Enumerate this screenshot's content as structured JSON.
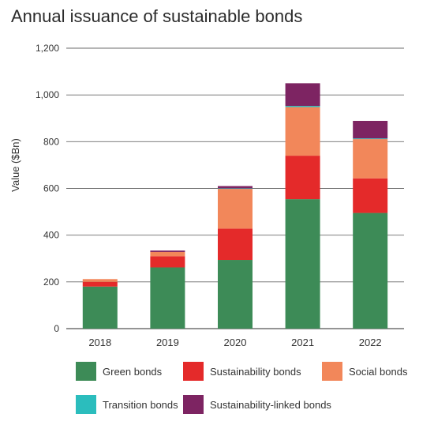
{
  "chart_data": {
    "type": "bar",
    "stacked": true,
    "title": "Annual issuance of sustainable bonds",
    "ylabel": "Value ($Bn)",
    "xlabel": "",
    "ylim": [
      0,
      1200
    ],
    "yticks": [
      0,
      200,
      400,
      600,
      800,
      1000,
      1200
    ],
    "ytick_labels": [
      "0",
      "200",
      "400",
      "600",
      "800",
      "1,000",
      "1,200"
    ],
    "grid": true,
    "legend_position": "bottom",
    "categories": [
      "2018",
      "2019",
      "2020",
      "2021",
      "2022"
    ],
    "series": [
      {
        "name": "Green bonds",
        "color": "#3d8b57",
        "values": [
          180,
          262,
          294,
          554,
          495
        ]
      },
      {
        "name": "Sustainability bonds",
        "color": "#e42a2a",
        "values": [
          20,
          48,
          134,
          186,
          148
        ]
      },
      {
        "name": "Social bonds",
        "color": "#f2875a",
        "values": [
          12,
          18,
          170,
          208,
          168
        ]
      },
      {
        "name": "Transition bonds",
        "color": "#2bbdbd",
        "values": [
          0,
          0,
          2,
          5,
          3
        ]
      },
      {
        "name": "Sustainability-linked bonds",
        "color": "#7d2462",
        "values": [
          0,
          6,
          10,
          97,
          75
        ]
      }
    ]
  }
}
